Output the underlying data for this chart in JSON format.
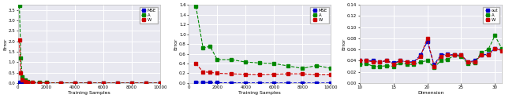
{
  "plot1": {
    "xlabel": "Training Samples",
    "ylabel": "Error",
    "xlim": [
      0,
      10000
    ],
    "ylim": [
      0,
      3.75
    ],
    "yticks": [
      0.0,
      0.5,
      1.0,
      1.5,
      2.0,
      2.5,
      3.0,
      3.5
    ],
    "xticks": [
      0,
      2000,
      4000,
      6000,
      8000,
      10000
    ],
    "x": [
      100,
      200,
      300,
      500,
      700,
      1000,
      1500,
      2000,
      3000,
      4000,
      5000,
      6000,
      7000,
      8000,
      9000,
      10000
    ],
    "MSE": [
      0.05,
      0.04,
      0.03,
      0.02,
      0.01,
      0.01,
      0.005,
      0.003,
      0.002,
      0.001,
      0.001,
      0.001,
      0.001,
      0.001,
      0.001,
      0.001
    ],
    "A": [
      3.7,
      1.2,
      0.3,
      0.15,
      0.08,
      0.05,
      0.03,
      0.02,
      0.01,
      0.005,
      0.003,
      0.002,
      0.001,
      0.001,
      0.001,
      0.001
    ],
    "W": [
      2.05,
      0.5,
      0.15,
      0.08,
      0.04,
      0.02,
      0.01,
      0.005,
      0.003,
      0.002,
      0.001,
      0.001,
      0.001,
      0.001,
      0.001,
      0.001
    ],
    "legend": [
      "MSE",
      "A",
      "W"
    ]
  },
  "plot2": {
    "xlabel": "Training Samples",
    "ylabel": "Error",
    "xlim": [
      0,
      10000
    ],
    "ylim": [
      0,
      1.6
    ],
    "yticks": [
      0.0,
      0.2,
      0.4,
      0.6,
      0.8,
      1.0,
      1.2,
      1.4,
      1.6
    ],
    "xticks": [
      0,
      2000,
      4000,
      6000,
      8000,
      10000
    ],
    "x": [
      500,
      1000,
      1500,
      2000,
      3000,
      4000,
      5000,
      6000,
      7000,
      8000,
      9000,
      10000
    ],
    "MSE": [
      0.02,
      0.015,
      0.01,
      0.008,
      0.006,
      0.005,
      0.004,
      0.004,
      0.003,
      0.003,
      0.003,
      0.003
    ],
    "A": [
      1.57,
      0.72,
      0.75,
      0.48,
      0.48,
      0.43,
      0.41,
      0.4,
      0.35,
      0.3,
      0.36,
      0.3
    ],
    "W": [
      0.4,
      0.23,
      0.22,
      0.2,
      0.19,
      0.18,
      0.17,
      0.18,
      0.19,
      0.19,
      0.17,
      0.17
    ],
    "legend": [
      "MSE",
      "A",
      "W"
    ]
  },
  "plot3": {
    "xlabel": "Dimension",
    "ylabel": "Error",
    "xlim": [
      10,
      31
    ],
    "ylim": [
      0.0,
      0.14
    ],
    "yticks": [
      0.0,
      0.02,
      0.04,
      0.06,
      0.08,
      0.1,
      0.12,
      0.14
    ],
    "xticks": [
      10,
      15,
      20,
      25,
      30
    ],
    "x": [
      10,
      11,
      12,
      13,
      14,
      15,
      16,
      17,
      18,
      19,
      20,
      21,
      22,
      23,
      24,
      25,
      26,
      27,
      28,
      29,
      30,
      31
    ],
    "out": [
      0.04,
      0.04,
      0.04,
      0.038,
      0.04,
      0.036,
      0.04,
      0.038,
      0.038,
      0.05,
      0.074,
      0.033,
      0.05,
      0.052,
      0.05,
      0.05,
      0.038,
      0.04,
      0.05,
      0.052,
      0.062,
      0.06
    ],
    "A": [
      0.033,
      0.035,
      0.03,
      0.03,
      0.031,
      0.03,
      0.036,
      0.034,
      0.033,
      0.038,
      0.04,
      0.028,
      0.04,
      0.042,
      0.05,
      0.048,
      0.035,
      0.036,
      0.055,
      0.06,
      0.085,
      0.062
    ],
    "W": [
      0.04,
      0.04,
      0.038,
      0.038,
      0.04,
      0.034,
      0.04,
      0.038,
      0.036,
      0.048,
      0.08,
      0.03,
      0.048,
      0.05,
      0.05,
      0.05,
      0.038,
      0.038,
      0.05,
      0.05,
      0.062,
      0.058
    ],
    "legend": [
      "out",
      "A",
      "W"
    ]
  },
  "colors": {
    "MSE": "#0000cc",
    "out": "#0000cc",
    "A": "#008800",
    "W": "#cc0000"
  },
  "marker": "s",
  "markersize": 2.5,
  "linewidth": 0.8,
  "linestyle": "--",
  "bg_color": "#e8e8f0",
  "grid_color": "#ffffff"
}
